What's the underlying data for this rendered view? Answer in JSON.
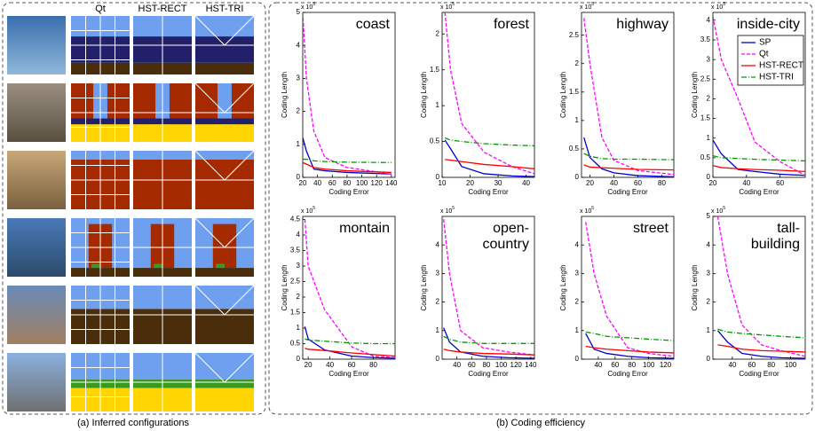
{
  "left_panel": {
    "columns": [
      "Qt",
      "HST-RECT",
      "HST-TRI"
    ],
    "caption": "(a) Inferred configurations"
  },
  "right_caption": "(b) Coding efficiency",
  "chart_data": [
    {
      "type": "line",
      "title_lines": [
        "coast"
      ],
      "xlabel": "Coding Error",
      "ylabel": "Coding Length",
      "y_multiplier": {
        "base": "x 10",
        "exponent": "5"
      },
      "x": [
        20,
        25,
        35,
        50,
        80,
        140
      ],
      "xlim": [
        20,
        145
      ],
      "xticks": [
        20,
        40,
        60,
        80,
        100,
        120,
        140
      ],
      "ylim": [
        0,
        5
      ],
      "yticks": [
        0,
        1,
        2,
        3,
        4,
        5
      ],
      "series": [
        {
          "name": "SP",
          "color": "#0000cc",
          "style": "solid",
          "values": [
            1.2,
            0.8,
            0.25,
            0.2,
            0.15,
            0.1
          ]
        },
        {
          "name": "Qt",
          "color": "#ff00ff",
          "style": "dashed",
          "values": [
            5.0,
            3.0,
            1.4,
            0.6,
            0.3,
            0.1
          ]
        },
        {
          "name": "HST-RECT",
          "color": "#ff0000",
          "style": "solid",
          "values": [
            0.45,
            0.4,
            0.3,
            0.25,
            0.2,
            0.15
          ]
        },
        {
          "name": "HST-TRI",
          "color": "#009900",
          "style": "dashdot",
          "values": [
            0.55,
            0.55,
            0.5,
            0.48,
            0.46,
            0.45
          ]
        }
      ]
    },
    {
      "type": "line",
      "title_lines": [
        "forest"
      ],
      "xlabel": "Coding Error",
      "ylabel": "Coding Length",
      "y_multiplier": {
        "base": "x 10",
        "exponent": "5"
      },
      "x": [
        11,
        13,
        17,
        25,
        35,
        43
      ],
      "xlim": [
        10,
        43
      ],
      "xticks": [
        10,
        20,
        30,
        40
      ],
      "ylim": [
        0,
        2.3
      ],
      "yticks": [
        0,
        0.5,
        1,
        1.5,
        2
      ],
      "series": [
        {
          "name": "SP",
          "color": "#0000cc",
          "style": "solid",
          "values": [
            0.52,
            0.4,
            0.15,
            0.05,
            0.02,
            0.01
          ]
        },
        {
          "name": "Qt",
          "color": "#ff00ff",
          "style": "dashed",
          "values": [
            2.3,
            1.5,
            0.75,
            0.35,
            0.15,
            0.05
          ]
        },
        {
          "name": "HST-RECT",
          "color": "#ff0000",
          "style": "solid",
          "values": [
            0.25,
            0.24,
            0.22,
            0.18,
            0.15,
            0.12
          ]
        },
        {
          "name": "HST-TRI",
          "color": "#009900",
          "style": "dashdot",
          "values": [
            0.55,
            0.52,
            0.5,
            0.47,
            0.45,
            0.44
          ]
        }
      ]
    },
    {
      "type": "line",
      "title_lines": [
        "highway"
      ],
      "xlabel": "Coding Error",
      "ylabel": "Coding Length",
      "y_multiplier": {
        "base": "x 10",
        "exponent": "5"
      },
      "x": [
        15,
        20,
        30,
        40,
        60,
        90
      ],
      "xlim": [
        13,
        90
      ],
      "xticks": [
        20,
        40,
        60,
        80
      ],
      "ylim": [
        0,
        2.9
      ],
      "yticks": [
        0,
        0.5,
        1,
        1.5,
        2,
        2.5
      ],
      "series": [
        {
          "name": "SP",
          "color": "#0000cc",
          "style": "solid",
          "values": [
            0.7,
            0.35,
            0.15,
            0.08,
            0.03,
            0.01
          ]
        },
        {
          "name": "Qt",
          "color": "#ff00ff",
          "style": "dashed",
          "values": [
            2.8,
            2.0,
            0.7,
            0.3,
            0.12,
            0.05
          ]
        },
        {
          "name": "HST-RECT",
          "color": "#ff0000",
          "style": "solid",
          "values": [
            0.22,
            0.18,
            0.17,
            0.16,
            0.14,
            0.13
          ]
        },
        {
          "name": "HST-TRI",
          "color": "#009900",
          "style": "dashdot",
          "values": [
            0.42,
            0.37,
            0.33,
            0.32,
            0.32,
            0.31
          ]
        }
      ]
    },
    {
      "type": "line",
      "title_lines": [
        "inside-city"
      ],
      "xlabel": "Coding Error",
      "ylabel": "Coding Length",
      "y_multiplier": {
        "base": "x 10",
        "exponent": "5"
      },
      "legend": "upper right",
      "x": [
        20,
        25,
        35,
        45,
        60,
        75
      ],
      "xlim": [
        20,
        75
      ],
      "xticks": [
        20,
        40,
        60
      ],
      "ylim": [
        0,
        4.2
      ],
      "yticks": [
        0,
        0.5,
        1,
        1.5,
        2,
        2.5,
        3,
        3.5,
        4
      ],
      "series": [
        {
          "name": "SP",
          "color": "#0000cc",
          "style": "solid",
          "values": [
            0.95,
            0.6,
            0.2,
            0.15,
            0.08,
            0.05
          ]
        },
        {
          "name": "Qt",
          "color": "#ff00ff",
          "style": "dashed",
          "values": [
            4.1,
            3.0,
            2.0,
            0.9,
            0.4,
            0.05
          ]
        },
        {
          "name": "HST-RECT",
          "color": "#ff0000",
          "style": "solid",
          "values": [
            0.3,
            0.25,
            0.22,
            0.2,
            0.18,
            0.15
          ]
        },
        {
          "name": "HST-TRI",
          "color": "#009900",
          "style": "dashdot",
          "values": [
            0.55,
            0.5,
            0.48,
            0.46,
            0.44,
            0.42
          ]
        }
      ]
    },
    {
      "type": "line",
      "title_lines": [
        "montain"
      ],
      "xlabel": "Coding Error",
      "ylabel": "Coding Length",
      "y_multiplier": {
        "base": "x 10",
        "exponent": "5"
      },
      "x": [
        17,
        20,
        35,
        60,
        80,
        100
      ],
      "xlim": [
        15,
        100
      ],
      "xticks": [
        20,
        40,
        60,
        80
      ],
      "ylim": [
        0,
        4.6
      ],
      "yticks": [
        0,
        0.5,
        1,
        1.5,
        2,
        2.5,
        3,
        3.5,
        4,
        4.5
      ],
      "series": [
        {
          "name": "SP",
          "color": "#0000cc",
          "style": "solid",
          "values": [
            1.05,
            0.65,
            0.3,
            0.1,
            0.05,
            0.03
          ]
        },
        {
          "name": "Qt",
          "color": "#ff00ff",
          "style": "dashed",
          "values": [
            4.5,
            3.0,
            1.6,
            0.4,
            0.1,
            0.05
          ]
        },
        {
          "name": "HST-RECT",
          "color": "#ff0000",
          "style": "solid",
          "values": [
            0.35,
            0.32,
            0.28,
            0.2,
            0.15,
            0.1
          ]
        },
        {
          "name": "HST-TRI",
          "color": "#009900",
          "style": "dashdot",
          "values": [
            0.65,
            0.62,
            0.58,
            0.52,
            0.5,
            0.5
          ]
        }
      ]
    },
    {
      "type": "line",
      "title_lines": [
        "open-",
        "country"
      ],
      "xlabel": "Coding Error",
      "ylabel": "Coding Length",
      "y_multiplier": {
        "base": "x 10",
        "exponent": "5"
      },
      "x": [
        22,
        30,
        45,
        75,
        110,
        145
      ],
      "xlim": [
        20,
        145
      ],
      "xticks": [
        40,
        60,
        80,
        100,
        120,
        140
      ],
      "ylim": [
        0,
        5
      ],
      "yticks": [
        0,
        1,
        2,
        3,
        4
      ],
      "series": [
        {
          "name": "SP",
          "color": "#0000cc",
          "style": "solid",
          "values": [
            1.1,
            0.6,
            0.25,
            0.1,
            0.05,
            0.03
          ]
        },
        {
          "name": "Qt",
          "color": "#ff00ff",
          "style": "dashed",
          "values": [
            4.9,
            3.0,
            1.0,
            0.4,
            0.25,
            0.15
          ]
        },
        {
          "name": "HST-RECT",
          "color": "#ff0000",
          "style": "solid",
          "values": [
            0.35,
            0.3,
            0.25,
            0.2,
            0.18,
            0.15
          ]
        },
        {
          "name": "HST-TRI",
          "color": "#009900",
          "style": "dashdot",
          "values": [
            0.8,
            0.7,
            0.6,
            0.55,
            0.55,
            0.55
          ]
        }
      ]
    },
    {
      "type": "line",
      "title_lines": [
        "street"
      ],
      "xlabel": "Coding Error",
      "ylabel": "Coding Length",
      "y_multiplier": {
        "base": "x 10",
        "exponent": "5"
      },
      "x": [
        25,
        35,
        50,
        75,
        100,
        130
      ],
      "xlim": [
        20,
        130
      ],
      "xticks": [
        40,
        60,
        80,
        100,
        120
      ],
      "ylim": [
        0,
        5
      ],
      "yticks": [
        0,
        1,
        2,
        3,
        4
      ],
      "series": [
        {
          "name": "SP",
          "color": "#0000cc",
          "style": "solid",
          "values": [
            0.9,
            0.35,
            0.2,
            0.1,
            0.05,
            0.03
          ]
        },
        {
          "name": "Qt",
          "color": "#ff00ff",
          "style": "dashed",
          "values": [
            4.8,
            3.0,
            1.5,
            0.4,
            0.2,
            0.1
          ]
        },
        {
          "name": "HST-RECT",
          "color": "#ff0000",
          "style": "solid",
          "values": [
            0.45,
            0.4,
            0.35,
            0.3,
            0.25,
            0.22
          ]
        },
        {
          "name": "HST-TRI",
          "color": "#009900",
          "style": "dashdot",
          "values": [
            0.95,
            0.9,
            0.8,
            0.75,
            0.7,
            0.65
          ]
        }
      ]
    },
    {
      "type": "line",
      "title_lines": [
        "tall-",
        "building"
      ],
      "xlabel": "Coding Error",
      "ylabel": "Coding Length",
      "y_multiplier": {
        "base": "x 10",
        "exponent": "5"
      },
      "x": [
        25,
        35,
        50,
        70,
        90,
        115
      ],
      "xlim": [
        20,
        115
      ],
      "xticks": [
        40,
        60,
        80,
        100
      ],
      "ylim": [
        0,
        5
      ],
      "yticks": [
        0,
        1,
        2,
        3,
        4,
        5
      ],
      "series": [
        {
          "name": "SP",
          "color": "#0000cc",
          "style": "solid",
          "values": [
            1.0,
            0.6,
            0.2,
            0.1,
            0.05,
            0.03
          ]
        },
        {
          "name": "Qt",
          "color": "#ff00ff",
          "style": "dashed",
          "values": [
            5.0,
            3.0,
            1.2,
            0.5,
            0.3,
            0.1
          ]
        },
        {
          "name": "HST-RECT",
          "color": "#ff0000",
          "style": "solid",
          "values": [
            0.5,
            0.45,
            0.35,
            0.3,
            0.28,
            0.25
          ]
        },
        {
          "name": "HST-TRI",
          "color": "#009900",
          "style": "dashdot",
          "values": [
            1.05,
            0.95,
            0.9,
            0.85,
            0.8,
            0.75
          ]
        }
      ]
    }
  ]
}
